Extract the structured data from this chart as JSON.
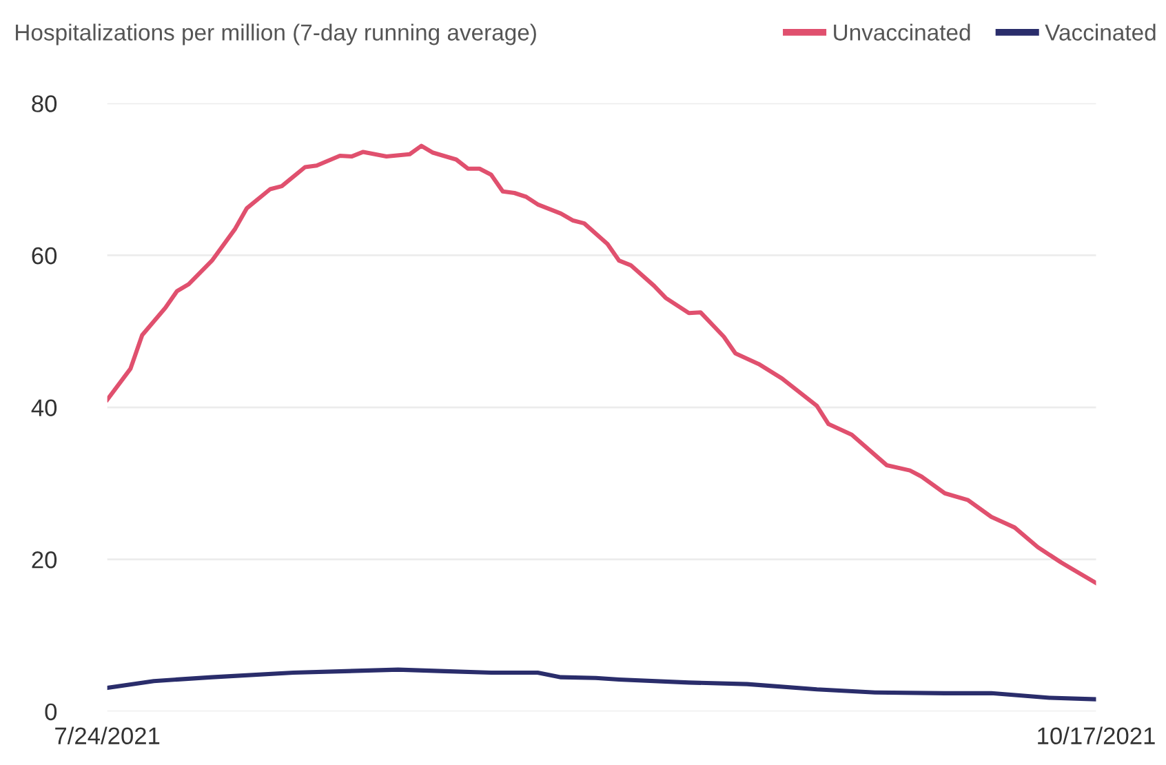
{
  "chart_data": {
    "type": "line",
    "ylabel": "Hospitalizations per million (7-day running average)",
    "xlim": [
      "2021-07-24",
      "2021-10-17"
    ],
    "xticks": [
      {
        "value": "2021-07-24",
        "label": "7/24/2021"
      },
      {
        "value": "2021-10-17",
        "label": "10/17/2021"
      }
    ],
    "ylim": [
      0,
      80
    ],
    "yticks": [
      0,
      20,
      40,
      60,
      80
    ],
    "grid": "y",
    "legend": "top right",
    "marker": "none",
    "line_style": "solid",
    "series": [
      {
        "name": "Unvaccinated",
        "color": "#e0506e",
        "x": [
          "2021-07-24",
          "2021-07-26",
          "2021-07-27",
          "2021-07-29",
          "2021-07-30",
          "2021-07-31",
          "2021-08-02",
          "2021-08-04",
          "2021-08-05",
          "2021-08-07",
          "2021-08-08",
          "2021-08-10",
          "2021-08-11",
          "2021-08-13",
          "2021-08-14",
          "2021-08-15",
          "2021-08-17",
          "2021-08-19",
          "2021-08-20",
          "2021-08-21",
          "2021-08-23",
          "2021-08-24",
          "2021-08-25",
          "2021-08-26",
          "2021-08-27",
          "2021-08-28",
          "2021-08-29",
          "2021-08-30",
          "2021-09-01",
          "2021-09-02",
          "2021-09-03",
          "2021-09-05",
          "2021-09-06",
          "2021-09-07",
          "2021-09-09",
          "2021-09-10",
          "2021-09-12",
          "2021-09-13",
          "2021-09-15",
          "2021-09-16",
          "2021-09-18",
          "2021-09-20",
          "2021-09-23",
          "2021-09-24",
          "2021-09-26",
          "2021-09-29",
          "2021-10-01",
          "2021-10-02",
          "2021-10-04",
          "2021-10-06",
          "2021-10-08",
          "2021-10-10",
          "2021-10-12",
          "2021-10-14",
          "2021-10-15",
          "2021-10-17"
        ],
        "values": [
          41.0,
          45.1,
          49.5,
          53.1,
          55.3,
          56.2,
          59.3,
          63.5,
          66.2,
          68.7,
          69.1,
          71.6,
          71.8,
          73.1,
          73.0,
          73.6,
          73.0,
          73.3,
          74.4,
          73.5,
          72.6,
          71.4,
          71.4,
          70.6,
          68.4,
          68.2,
          67.7,
          66.7,
          65.5,
          64.6,
          64.2,
          61.5,
          59.3,
          58.7,
          56.0,
          54.4,
          52.4,
          52.5,
          49.3,
          47.1,
          45.7,
          43.8,
          40.2,
          37.8,
          36.4,
          32.4,
          31.7,
          30.9,
          28.7,
          27.8,
          25.6,
          24.2,
          21.6,
          19.6,
          18.7,
          16.9
        ]
      },
      {
        "name": "Vaccinated",
        "color": "#2a2d6b",
        "x": [
          "2021-07-24",
          "2021-07-28",
          "2021-08-02",
          "2021-08-09",
          "2021-08-18",
          "2021-08-22",
          "2021-08-26",
          "2021-08-30",
          "2021-09-01",
          "2021-09-04",
          "2021-09-06",
          "2021-09-12",
          "2021-09-17",
          "2021-09-23",
          "2021-09-28",
          "2021-10-04",
          "2021-10-08",
          "2021-10-13",
          "2021-10-17"
        ],
        "values": [
          3.1,
          4.0,
          4.5,
          5.1,
          5.5,
          5.3,
          5.1,
          5.1,
          4.5,
          4.4,
          4.2,
          3.8,
          3.6,
          2.9,
          2.5,
          2.4,
          2.4,
          1.8,
          1.6
        ]
      }
    ]
  }
}
